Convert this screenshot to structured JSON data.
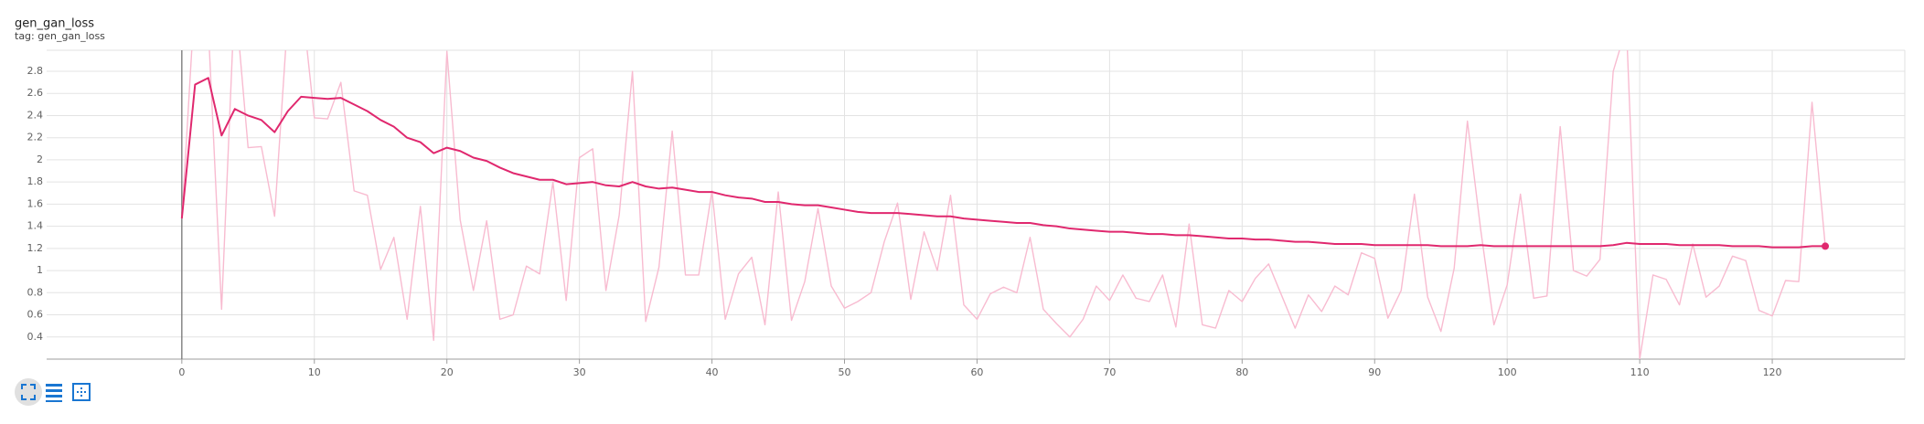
{
  "chart_data": {
    "type": "line",
    "title": "gen_gan_loss",
    "subtitle": "tag: gen_gan_loss",
    "x": [
      0,
      1,
      2,
      3,
      4,
      5,
      6,
      7,
      8,
      9,
      10,
      11,
      12,
      13,
      14,
      15,
      16,
      17,
      18,
      19,
      20,
      21,
      22,
      23,
      24,
      25,
      26,
      27,
      28,
      29,
      30,
      31,
      32,
      33,
      34,
      35,
      36,
      37,
      38,
      39,
      40,
      41,
      42,
      43,
      44,
      45,
      46,
      47,
      48,
      49,
      50,
      51,
      52,
      53,
      54,
      55,
      56,
      57,
      58,
      59,
      60,
      61,
      62,
      63,
      64,
      65,
      66,
      67,
      68,
      69,
      70,
      71,
      72,
      73,
      74,
      75,
      76,
      77,
      78,
      79,
      80,
      81,
      82,
      83,
      84,
      85,
      86,
      87,
      88,
      89,
      90,
      91,
      92,
      93,
      94,
      95,
      96,
      97,
      98,
      99,
      100,
      101,
      102,
      103,
      104,
      105,
      106,
      107,
      108,
      109,
      110,
      111,
      112,
      113,
      114,
      115,
      116,
      117,
      118,
      119,
      120,
      121,
      122,
      123,
      124
    ],
    "series": [
      {
        "color": "#f8bbd0",
        "values": [
          1.47,
          3.5,
          3.2,
          0.65,
          3.5,
          2.11,
          2.12,
          1.49,
          3.3,
          3.5,
          2.38,
          2.37,
          2.7,
          1.72,
          1.68,
          1.01,
          1.3,
          0.56,
          1.58,
          0.37,
          2.98,
          1.46,
          0.82,
          1.45,
          0.56,
          0.6,
          1.04,
          0.97,
          1.8,
          0.73,
          2.02,
          2.1,
          0.82,
          1.5,
          2.8,
          0.54,
          1.03,
          2.26,
          0.96,
          0.96,
          1.72,
          0.56,
          0.97,
          1.12,
          0.51,
          1.71,
          0.55,
          0.9,
          1.56,
          0.86,
          0.66,
          0.72,
          0.8,
          1.26,
          1.61,
          0.74,
          1.35,
          1.0,
          1.68,
          0.69,
          0.56,
          0.79,
          0.85,
          0.8,
          1.3,
          0.65,
          0.52,
          0.4,
          0.56,
          0.86,
          0.73,
          0.96,
          0.75,
          0.72,
          0.96,
          0.49,
          1.42,
          0.51,
          0.48,
          0.82,
          0.72,
          0.93,
          1.06,
          0.77,
          0.48,
          0.78,
          0.63,
          0.86,
          0.78,
          1.16,
          1.11,
          0.57,
          0.82,
          1.69,
          0.76,
          0.45,
          1.02,
          2.35,
          1.37,
          0.51,
          0.87,
          1.69,
          0.75,
          0.77,
          2.3,
          1.0,
          0.95,
          1.1,
          2.8,
          3.2,
          0.2,
          0.96,
          0.92,
          0.69,
          1.24,
          0.76,
          0.86,
          1.13,
          1.09,
          0.64,
          0.59,
          0.91,
          0.9,
          2.52,
          1.22
        ]
      },
      {
        "color": "#e0286e",
        "end_marker": true,
        "values": [
          1.47,
          2.68,
          2.74,
          2.22,
          2.46,
          2.4,
          2.36,
          2.25,
          2.44,
          2.57,
          2.56,
          2.55,
          2.56,
          2.5,
          2.44,
          2.36,
          2.3,
          2.2,
          2.16,
          2.06,
          2.11,
          2.08,
          2.02,
          1.99,
          1.93,
          1.88,
          1.85,
          1.82,
          1.82,
          1.78,
          1.79,
          1.8,
          1.77,
          1.76,
          1.8,
          1.76,
          1.74,
          1.75,
          1.73,
          1.71,
          1.71,
          1.68,
          1.66,
          1.65,
          1.62,
          1.62,
          1.6,
          1.59,
          1.59,
          1.57,
          1.55,
          1.53,
          1.52,
          1.52,
          1.52,
          1.51,
          1.5,
          1.49,
          1.49,
          1.47,
          1.46,
          1.45,
          1.44,
          1.43,
          1.43,
          1.41,
          1.4,
          1.38,
          1.37,
          1.36,
          1.35,
          1.35,
          1.34,
          1.33,
          1.33,
          1.32,
          1.32,
          1.31,
          1.3,
          1.29,
          1.29,
          1.28,
          1.28,
          1.27,
          1.26,
          1.26,
          1.25,
          1.24,
          1.24,
          1.24,
          1.23,
          1.23,
          1.23,
          1.23,
          1.23,
          1.22,
          1.22,
          1.22,
          1.23,
          1.22,
          1.22,
          1.22,
          1.22,
          1.22,
          1.22,
          1.22,
          1.22,
          1.22,
          1.23,
          1.25,
          1.24,
          1.24,
          1.24,
          1.23,
          1.23,
          1.23,
          1.23,
          1.22,
          1.22,
          1.22,
          1.21,
          1.21,
          1.21,
          1.22,
          1.22
        ]
      }
    ],
    "xlim": [
      -10.2,
      130
    ],
    "ylim": [
      0.2,
      2.99
    ],
    "xticks": [
      0,
      10,
      20,
      30,
      40,
      50,
      60,
      70,
      80,
      90,
      100,
      110,
      120
    ],
    "yticks": [
      0.4,
      0.6,
      0.8,
      1,
      1.2,
      1.4,
      1.6,
      1.8,
      2,
      2.2,
      2.4,
      2.6,
      2.8
    ],
    "grid": true
  }
}
